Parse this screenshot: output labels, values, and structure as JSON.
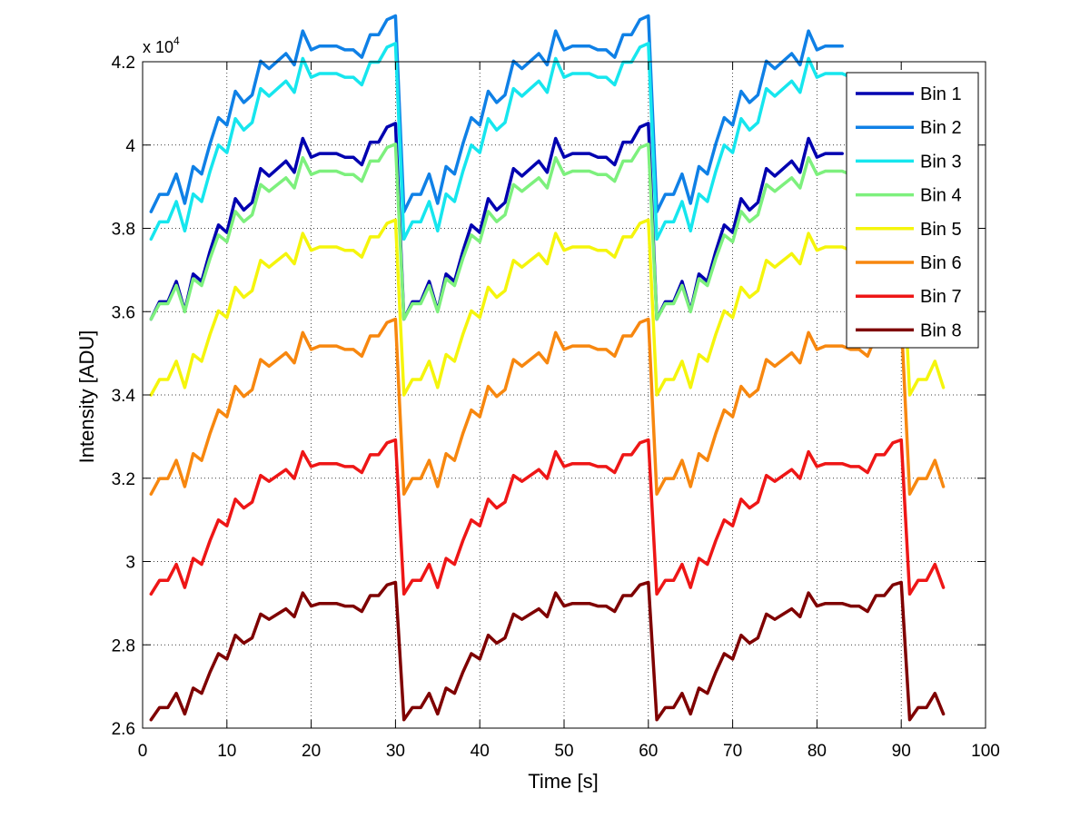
{
  "chart_data": {
    "type": "line",
    "title": "",
    "xlabel": "Time [s]",
    "ylabel": "Intensity [ADU]",
    "y_multiplier_label": {
      "base": "x 10",
      "exponent": "4"
    },
    "xlim": [
      0,
      100
    ],
    "ylim": [
      2.6,
      4.2
    ],
    "y_scale": 10000,
    "grid": true,
    "legend_position": "top-right",
    "x_ticks": [
      0,
      10,
      20,
      30,
      40,
      50,
      60,
      70,
      80,
      90,
      100
    ],
    "x_tick_labels": [
      "0",
      "10",
      "20",
      "30",
      "40",
      "50",
      "60",
      "70",
      "80",
      "90",
      "100"
    ],
    "y_ticks": [
      2.6,
      2.8,
      3.0,
      3.2,
      3.4,
      3.6,
      3.8,
      4.0,
      4.2
    ],
    "y_tick_labels": [
      "2.6",
      "2.8",
      "3",
      "3.2",
      "3.4",
      "3.6",
      "3.8",
      "4",
      "4.2"
    ],
    "base_profile": [
      0,
      0.046,
      0.046,
      0.1,
      0.022,
      0.12,
      0.1,
      0.18,
      0.25,
      0.23,
      0.32,
      0.29,
      0.31,
      0.4,
      0.38,
      0.4,
      0.42,
      0.39,
      0.48,
      0.43,
      0.44,
      0.44,
      0.44,
      0.43,
      0.43,
      0.41,
      0.47,
      0.47,
      0.51,
      0.52
    ],
    "series": [
      {
        "name": "Bin 1",
        "color": "#0000b0",
        "offset": 3.582,
        "amplitude": 0.47,
        "x_end": 83
      },
      {
        "name": "Bin 2",
        "color": "#0f80e6",
        "offset": 3.84,
        "amplitude": 0.47,
        "x_end": 83
      },
      {
        "name": "Bin 3",
        "color": "#16e6ee",
        "offset": 3.774,
        "amplitude": 0.47,
        "x_end": 85
      },
      {
        "name": "Bin 4",
        "color": "#7df07d",
        "offset": 3.582,
        "amplitude": 0.42,
        "x_end": 85
      },
      {
        "name": "Bin 5",
        "color": "#f5f50c",
        "offset": 3.4,
        "amplitude": 0.42,
        "x_end": 95
      },
      {
        "name": "Bin 6",
        "color": "#f7870f",
        "offset": 3.162,
        "amplitude": 0.42,
        "x_end": 95
      },
      {
        "name": "Bin 7",
        "color": "#ee1616",
        "offset": 2.922,
        "amplitude": 0.37,
        "x_end": 95
      },
      {
        "name": "Bin 8",
        "color": "#7f0000",
        "offset": 2.62,
        "amplitude": 0.33,
        "x_end": 95
      }
    ]
  }
}
